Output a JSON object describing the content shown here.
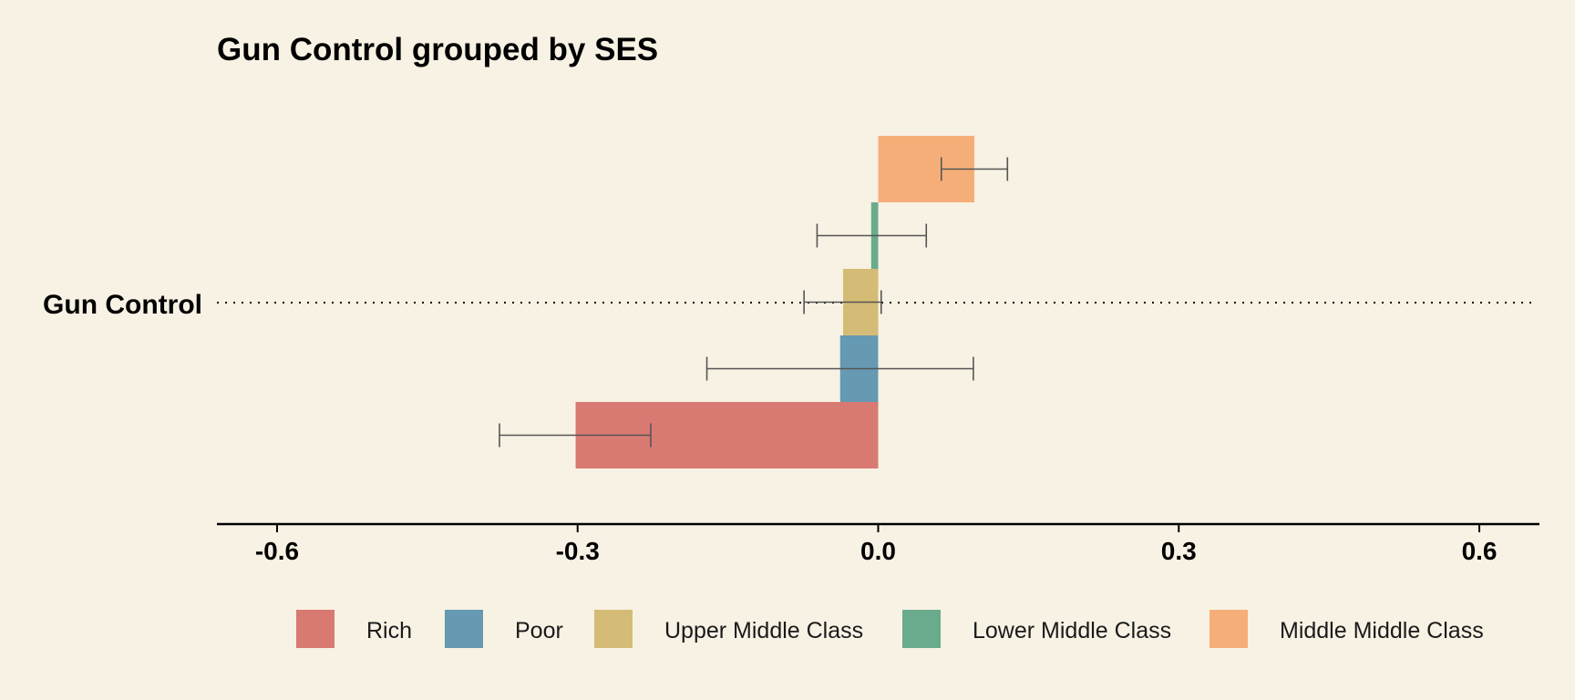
{
  "chart_data": {
    "type": "bar",
    "title": "Gun Control grouped by SES",
    "categories": [
      "Gun Control"
    ],
    "xlim": [
      -0.66,
      0.66
    ],
    "xticks": [
      -0.6,
      -0.3,
      0.0,
      0.3,
      0.6
    ],
    "xtick_labels": [
      "-0.6",
      "-0.3",
      "0.0",
      "0.3",
      "0.6"
    ],
    "grid": false,
    "legend_position": "bottom",
    "series": [
      {
        "name": "Rich",
        "value": -0.302,
        "ci": [
          -0.378,
          -0.227
        ],
        "color": "#d97a72"
      },
      {
        "name": "Poor",
        "value": -0.038,
        "ci": [
          -0.171,
          0.095
        ],
        "color": "#6699b2"
      },
      {
        "name": "Upper Middle Class",
        "value": -0.035,
        "ci": [
          -0.074,
          0.003
        ],
        "color": "#d4bc76"
      },
      {
        "name": "Lower Middle Class",
        "value": -0.007,
        "ci": [
          -0.061,
          0.048
        ],
        "color": "#6aab8d"
      },
      {
        "name": "Middle Middle Class",
        "value": 0.096,
        "ci": [
          0.063,
          0.129
        ],
        "color": "#f6ae78"
      }
    ]
  }
}
